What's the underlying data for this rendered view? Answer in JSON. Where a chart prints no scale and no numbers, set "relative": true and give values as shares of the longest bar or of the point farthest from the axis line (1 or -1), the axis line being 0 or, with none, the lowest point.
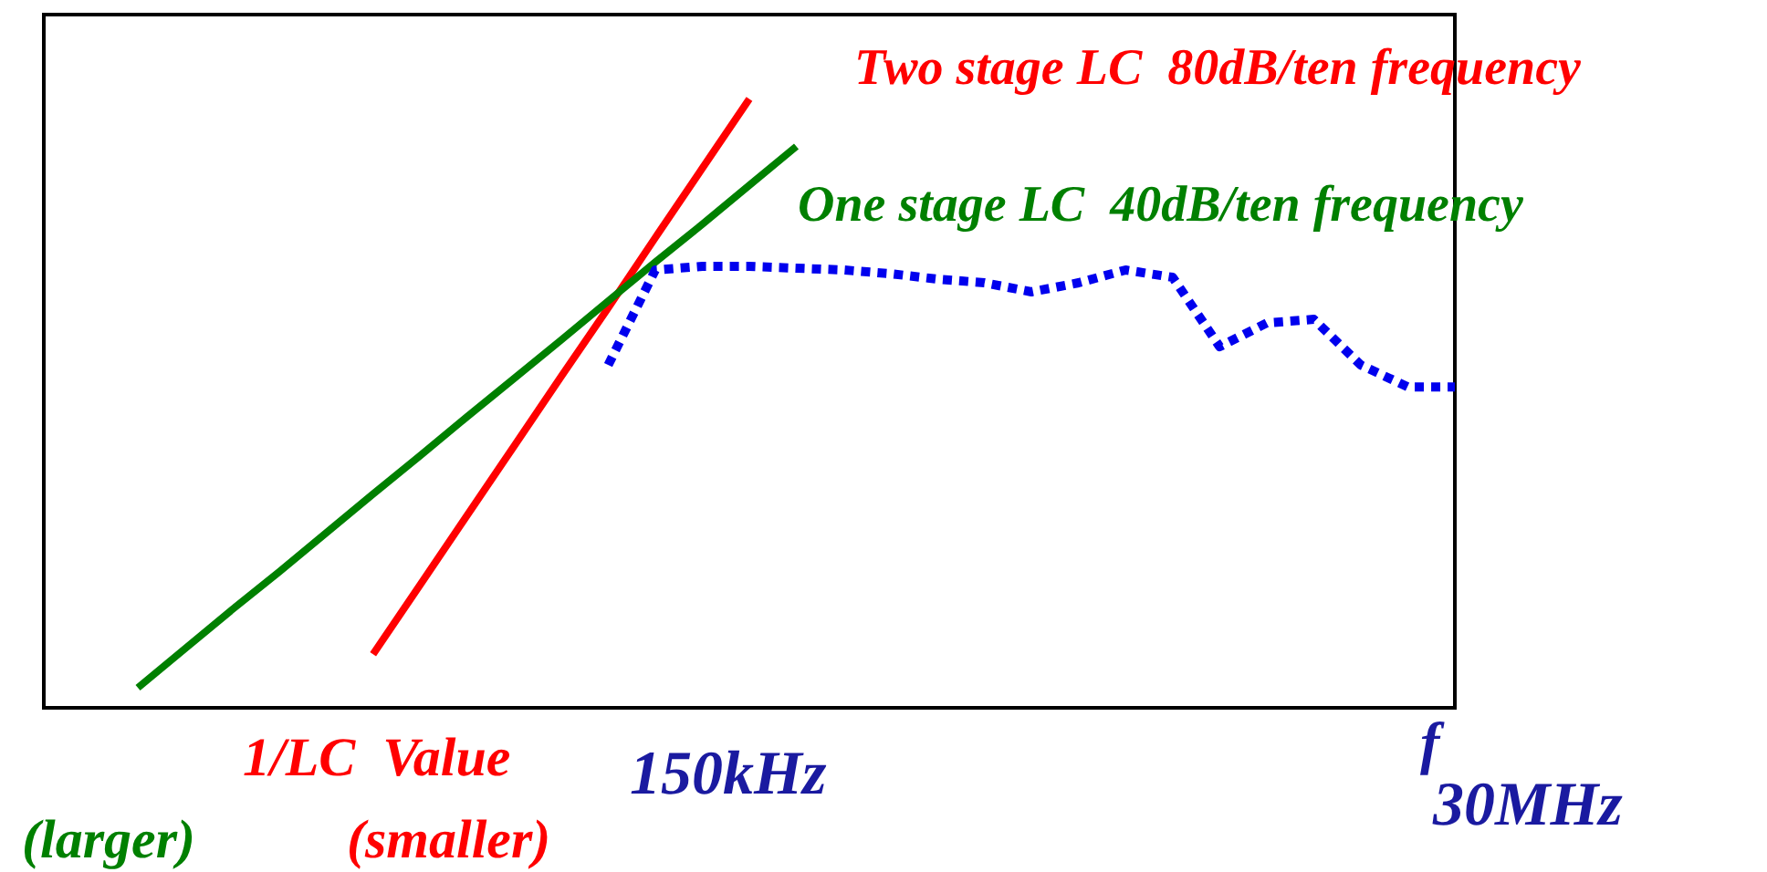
{
  "chart_data": {
    "type": "line",
    "relative": true,
    "xlabel": "f",
    "legend": false,
    "categories": [
      null,
      null,
      null,
      null,
      null,
      null,
      null,
      null,
      null,
      null,
      null,
      null,
      null,
      null,
      null,
      null,
      null,
      null,
      null,
      null,
      null,
      null,
      null,
      null,
      null,
      null,
      null,
      null,
      null,
      null,
      null
    ],
    "series": [
      {
        "name": "Two stage LC  80dB/ten frequency",
        "color": "#ff0000",
        "line_style": "solid",
        "values": [
          null,
          null,
          null,
          null,
          null,
          null,
          null,
          0.088,
          0.202,
          0.316,
          0.43,
          0.544,
          0.657,
          0.772,
          0.886,
          1,
          null,
          null,
          null,
          null,
          null,
          null,
          null,
          null,
          null,
          null,
          null,
          null,
          null,
          null,
          null
        ]
      },
      {
        "name": "One stage LC  40dB/ten frequency",
        "color": "#008000",
        "line_style": "solid",
        "values": [
          null,
          null,
          0.033,
          0.097,
          0.161,
          0.223,
          0.287,
          0.351,
          0.414,
          0.478,
          0.541,
          0.604,
          0.668,
          0.732,
          0.794,
          0.858,
          0.922,
          null,
          null,
          null,
          null,
          null,
          null,
          null,
          null,
          null,
          null,
          null,
          null,
          null,
          null
        ]
      },
      {
        "color": "#0000ee",
        "line_style": "dotted",
        "values": [
          null,
          null,
          null,
          null,
          null,
          null,
          null,
          null,
          null,
          null,
          null,
          null,
          0.563,
          0.719,
          0.725,
          0.725,
          0.722,
          0.719,
          0.713,
          0.704,
          0.698,
          0.683,
          0.698,
          0.719,
          0.707,
          0.593,
          0.632,
          0.638,
          0.563,
          0.527,
          0.527
        ]
      }
    ],
    "annotations": [
      "1/LC  Value",
      "(larger)",
      "(smaller)",
      "150kHz",
      "30MHz"
    ]
  }
}
